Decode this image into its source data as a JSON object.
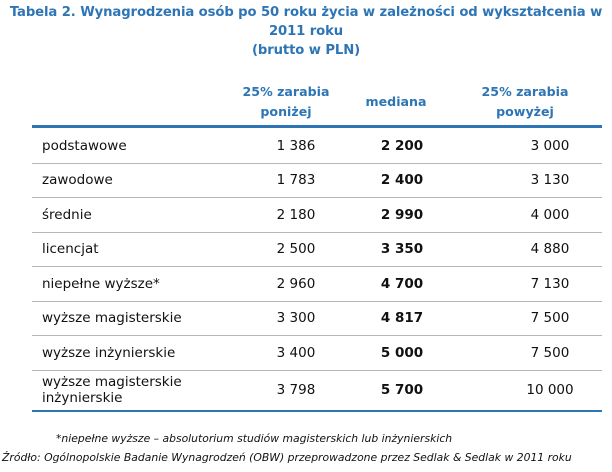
{
  "title_line1": "Tabela 2. Wynagrodzenia osób po 50 roku życia w zależności od wykształcenia w 2011 roku",
  "title_line2": "(brutto w PLN)",
  "columns": {
    "low_line1": "25% zarabia",
    "low_line2": "poniżej",
    "median": "mediana",
    "high_line1": "25% zarabia",
    "high_line2": "powyżej"
  },
  "rows": [
    {
      "label": "podstawowe",
      "low": "1 386",
      "median": "2 200",
      "high": "3 000"
    },
    {
      "label": "zawodowe",
      "low": "1 783",
      "median": "2 400",
      "high": "3 130"
    },
    {
      "label": "średnie",
      "low": "2 180",
      "median": "2 990",
      "high": "4 000"
    },
    {
      "label": "licencjat",
      "low": "2 500",
      "median": "3 350",
      "high": "4 880"
    },
    {
      "label": "niepełne wyższe*",
      "low": "2 960",
      "median": "4 700",
      "high": "7 130"
    },
    {
      "label": "wyższe magisterskie",
      "low": "3 300",
      "median": "4 817",
      "high": "7 500"
    },
    {
      "label": "wyższe inżynierskie",
      "low": "3 400",
      "median": "5 000",
      "high": "7 500"
    },
    {
      "label_line1": "wyższe magisterskie",
      "label_line2": "inżynierskie",
      "low": "3 798",
      "median": "5 700",
      "high": "10 000"
    }
  ],
  "footnote": "*niepełne wyższe – absolutorium studiów magisterskich  lub inżynierskich",
  "source": "Źródło: Ogólnopolskie Badanie Wynagrodzeń (OBW) przeprowadzone przez  Sedlak & Sedlak w 2011 roku"
}
